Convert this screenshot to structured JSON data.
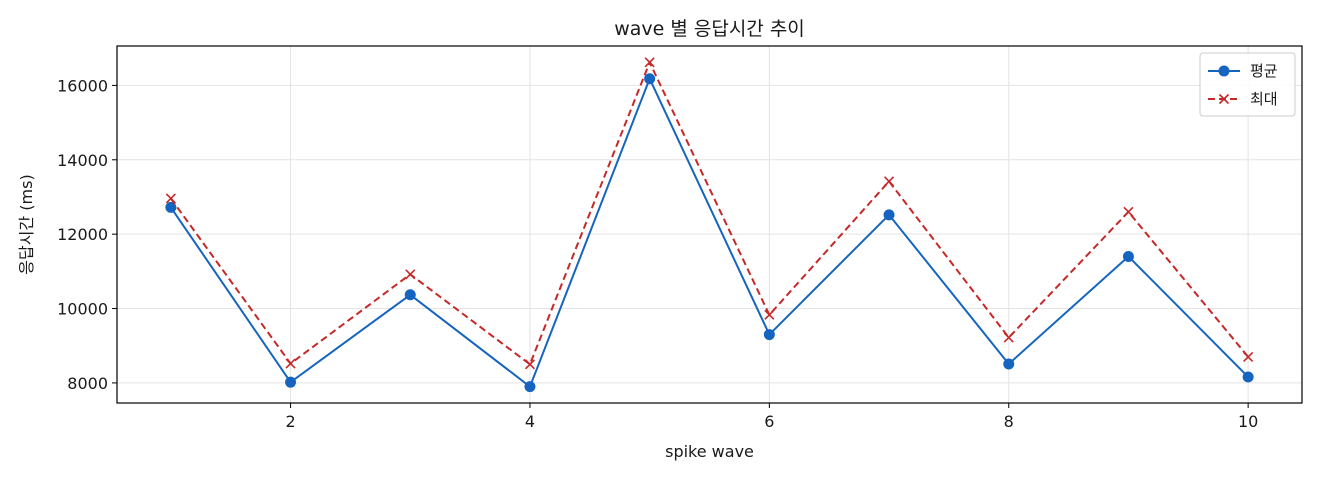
{
  "chart_data": {
    "type": "line",
    "title": "wave 별 응답시간 추이",
    "xlabel": "spike wave",
    "ylabel": "응답시간 (ms)",
    "x": [
      1,
      2,
      3,
      4,
      5,
      6,
      7,
      8,
      9,
      10
    ],
    "xticks": [
      2,
      4,
      6,
      8,
      10
    ],
    "yticks": [
      8000,
      10000,
      12000,
      14000,
      16000
    ],
    "xlim": [
      0.55,
      10.45
    ],
    "ylim": [
      7460,
      17060
    ],
    "grid": true,
    "legend_position": "top-right",
    "series": [
      {
        "name": "평균",
        "values": [
          12720,
          8020,
          10370,
          7900,
          16180,
          9300,
          12520,
          8510,
          11400,
          8160
        ],
        "color": "#1565c0",
        "marker": "circle",
        "line_style": "solid"
      },
      {
        "name": "최대",
        "values": [
          12960,
          8520,
          10920,
          8500,
          16620,
          9830,
          13420,
          9220,
          12600,
          8700
        ],
        "color": "#c62828",
        "marker": "x",
        "line_style": "dashed"
      }
    ]
  }
}
